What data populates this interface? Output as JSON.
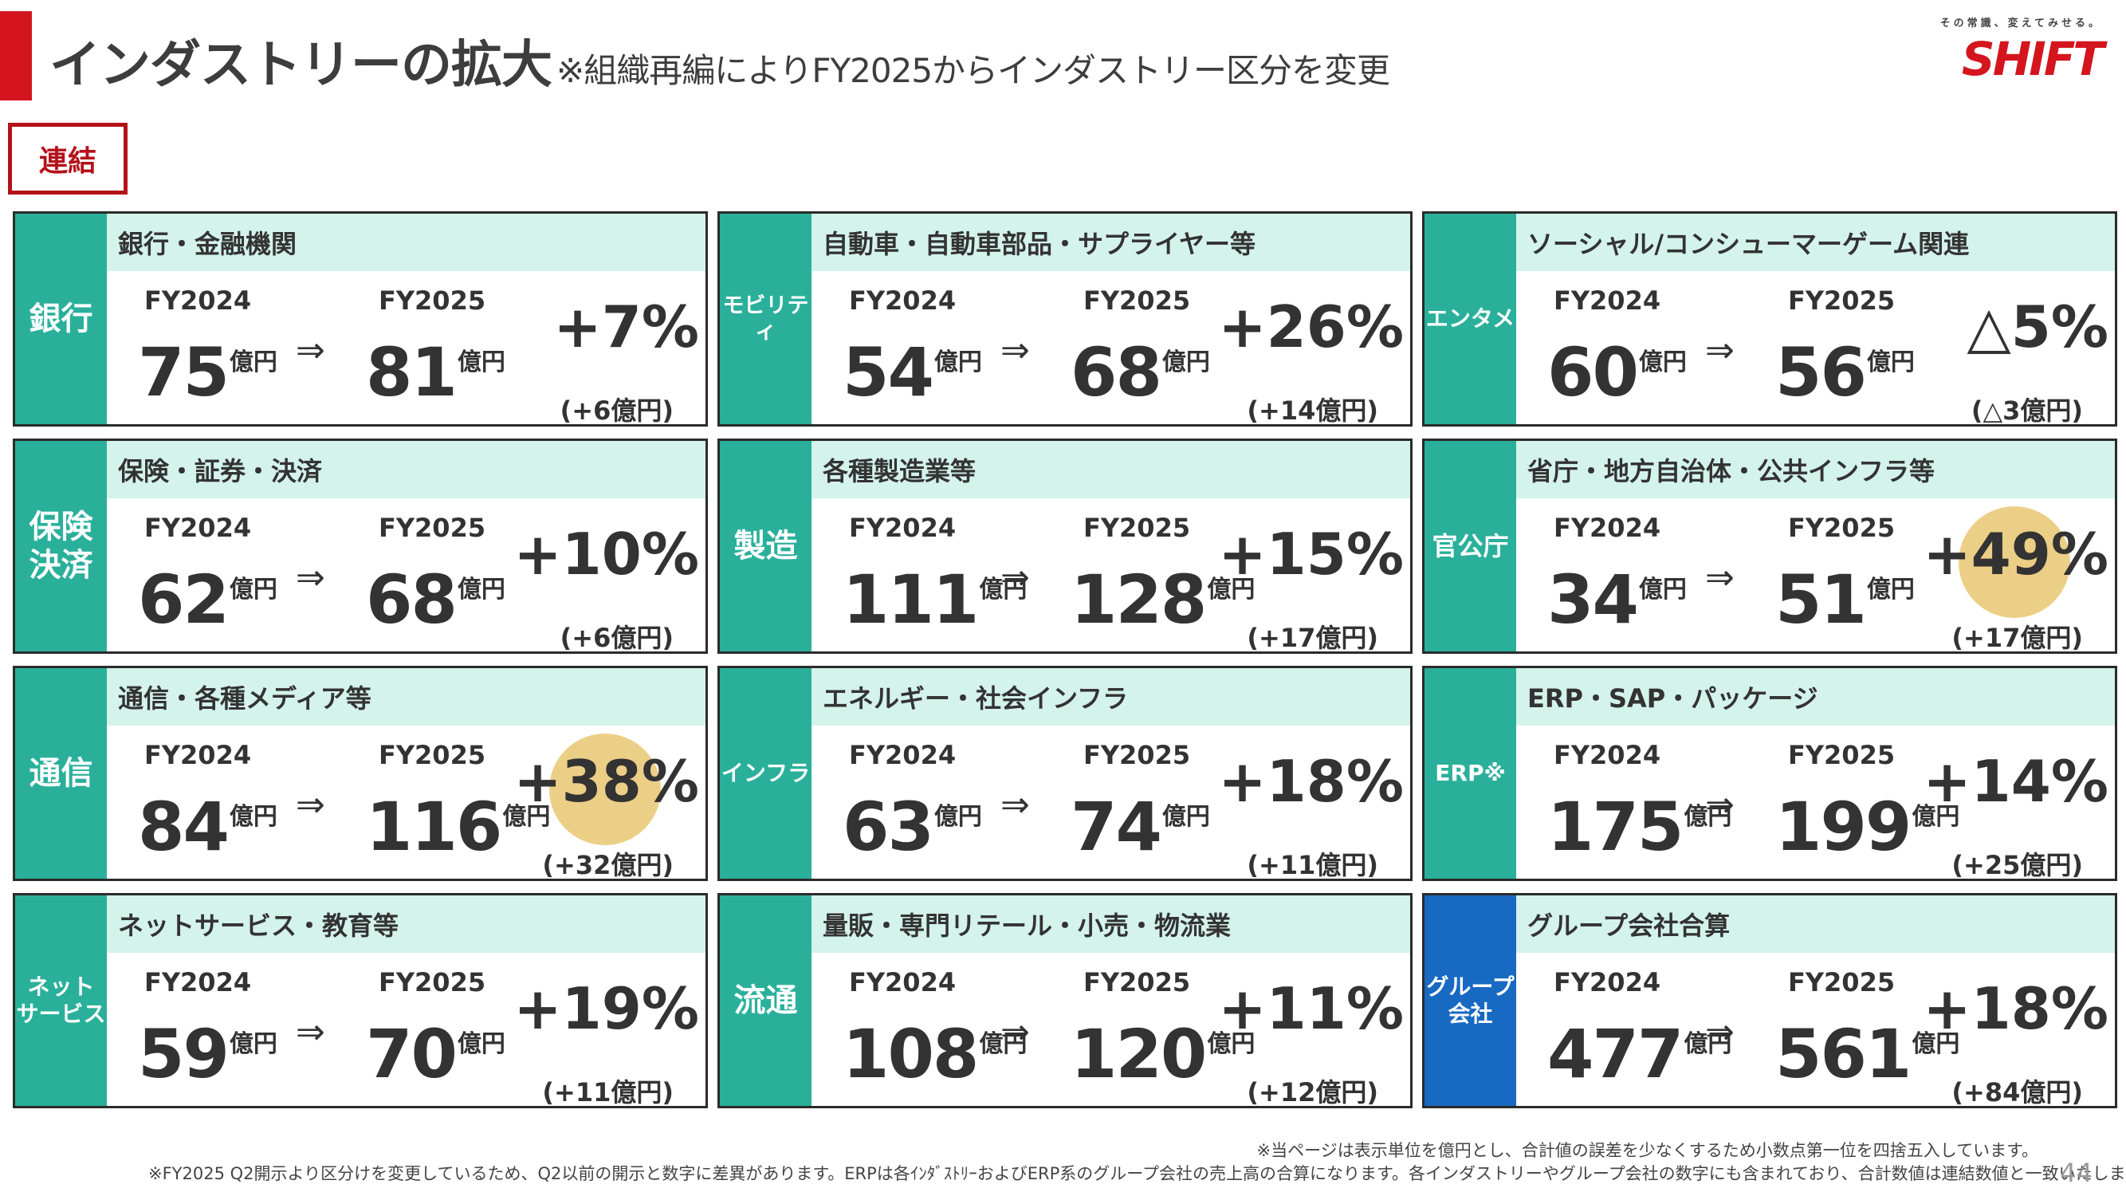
{
  "header": {
    "title": "インダストリーの拡大",
    "subtitle": "※組織再編によりFY2025からインダストリー区分を変更",
    "badge": "連結"
  },
  "logo": {
    "tagline": "その常識、変えてみせる。",
    "wordmark": "SHIFT",
    "color": "#d4151e"
  },
  "colors": {
    "accent": "#d4151e",
    "category": "#2ab09a",
    "category_group": "#1869c2",
    "header_band": "#d4f3ea",
    "highlight": "#eccf86"
  },
  "labels": {
    "fy_prev": "FY2024",
    "fy_curr": "FY2025",
    "unit": "億円",
    "arrow": "⇒"
  },
  "cards": [
    {
      "category": "銀行",
      "header": "銀行・金融機関",
      "prev": "75",
      "curr": "81",
      "pct": "+7%",
      "diff": "(+6億円)",
      "highlight": false,
      "cat_style": "teal"
    },
    {
      "category": "モビリティ",
      "header": "自動車・自動車部品・サプライヤー等",
      "prev": "54",
      "curr": "68",
      "pct": "+26%",
      "diff": "(+14億円)",
      "highlight": false,
      "cat_style": "teal"
    },
    {
      "category": "エンタメ",
      "header": "ソーシャル/コンシューマーゲーム関連",
      "prev": "60",
      "curr": "56",
      "pct": "△5%",
      "diff": "(△3億円)",
      "highlight": false,
      "cat_style": "teal"
    },
    {
      "category": "保険\n決済",
      "header": "保険・証券・決済",
      "prev": "62",
      "curr": "68",
      "pct": "+10%",
      "diff": "(+6億円)",
      "highlight": false,
      "cat_style": "teal"
    },
    {
      "category": "製造",
      "header": "各種製造業等",
      "prev": "111",
      "curr": "128",
      "pct": "+15%",
      "diff": "(+17億円)",
      "highlight": false,
      "cat_style": "teal"
    },
    {
      "category": "官公庁",
      "header": "省庁・地方自治体・公共インフラ等",
      "prev": "34",
      "curr": "51",
      "pct": "+49%",
      "diff": "(+17億円)",
      "highlight": true,
      "cat_style": "teal"
    },
    {
      "category": "通信",
      "header": "通信・各種メディア等",
      "prev": "84",
      "curr": "116",
      "pct": "+38%",
      "diff": "(+32億円)",
      "highlight": true,
      "cat_style": "teal"
    },
    {
      "category": "インフラ",
      "header": "エネルギー・社会インフラ",
      "prev": "63",
      "curr": "74",
      "pct": "+18%",
      "diff": "(+11億円)",
      "highlight": false,
      "cat_style": "teal"
    },
    {
      "category": "ERP※",
      "header": "ERP・SAP・パッケージ",
      "prev": "175",
      "curr": "199",
      "pct": "+14%",
      "diff": "(+25億円)",
      "highlight": false,
      "cat_style": "teal"
    },
    {
      "category": "ネット\nサービス",
      "header": "ネットサービス・教育等",
      "prev": "59",
      "curr": "70",
      "pct": "+19%",
      "diff": "(+11億円)",
      "highlight": false,
      "cat_style": "teal"
    },
    {
      "category": "流通",
      "header": "量販・専門リテール・小売・物流業",
      "prev": "108",
      "curr": "120",
      "pct": "+11%",
      "diff": "(+12億円)",
      "highlight": false,
      "cat_style": "teal"
    },
    {
      "category": "グループ\n会社",
      "header": "グループ会社合算",
      "prev": "477",
      "curr": "561",
      "pct": "+18%",
      "diff": "(+84億円)",
      "highlight": false,
      "cat_style": "blue"
    }
  ],
  "footnotes": {
    "note1": "※当ページは表示単位を億円とし、合計値の誤差を少なくするため小数点第一位を四捨五入しています。",
    "note2": "※FY2025 Q2開示より区分けを変更しているため、Q2以前の開示と数字に差異があります。ERPは各ｲﾝﾀﾞｽﾄﾘｰおよびERP系のグループ会社の売上高の合算になります。各インダストリーやグループ会社の数字にも含まれており、合計数値は連結数値と一致いたしません。",
    "page_number": "44"
  }
}
